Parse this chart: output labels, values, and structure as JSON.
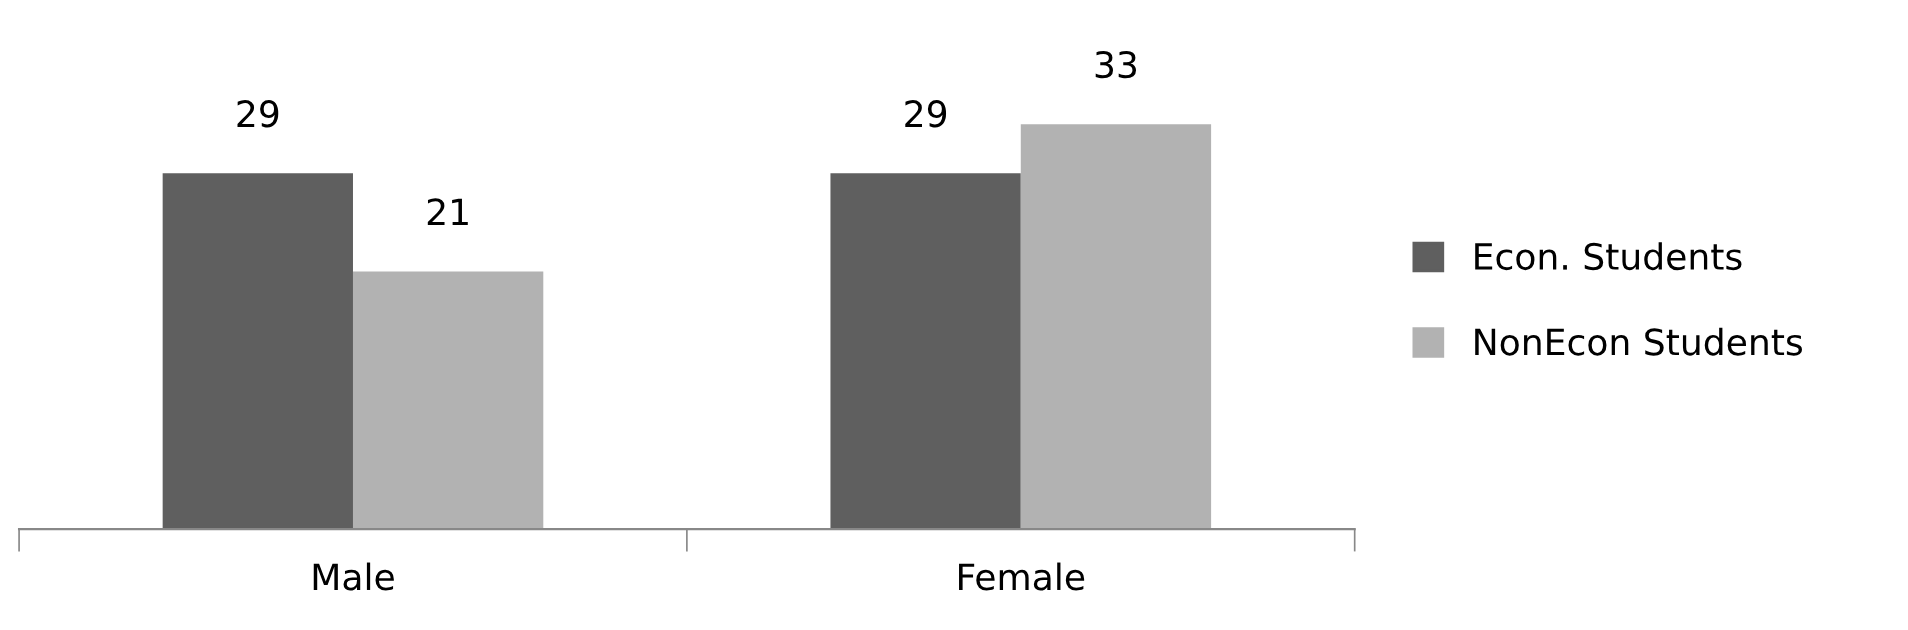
{
  "chart_data": {
    "type": "bar",
    "categories": [
      "Male",
      "Female"
    ],
    "series": [
      {
        "name": "Econ. Students",
        "color": "#5f5f5f",
        "values": [
          29,
          29
        ]
      },
      {
        "name": "NonEcon Students",
        "color": "#b2b2b2",
        "values": [
          21,
          33
        ]
      }
    ],
    "data_labels": true,
    "legend": "right",
    "grid": false
  }
}
